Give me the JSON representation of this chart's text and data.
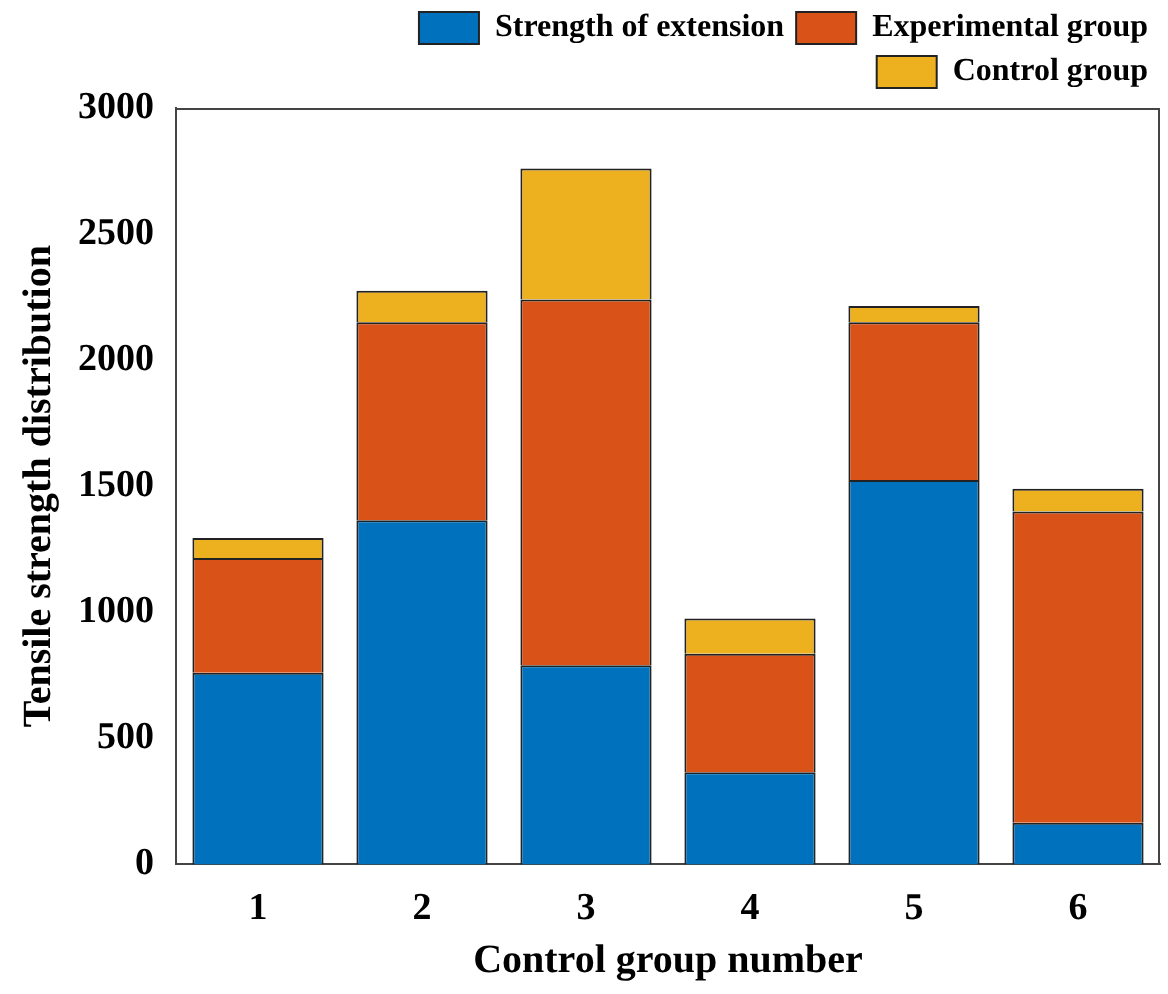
{
  "chart_data": {
    "type": "bar",
    "stacked": true,
    "xlabel": "Control group number",
    "ylabel": "Tensile strength distribution",
    "categories": [
      "1",
      "2",
      "3",
      "4",
      "5",
      "6"
    ],
    "series": [
      {
        "name": "Strength of extension",
        "color": "#0072bd",
        "values": [
          760,
          1365,
          790,
          365,
          1525,
          165
        ]
      },
      {
        "name": "Experimental group",
        "color": "#d95319",
        "values": [
          455,
          785,
          1450,
          470,
          625,
          1235
        ]
      },
      {
        "name": "Control group",
        "color": "#edb120",
        "values": [
          80,
          125,
          520,
          140,
          65,
          90
        ]
      }
    ],
    "ylim": [
      0,
      3000
    ],
    "yticks": [
      0,
      500,
      1000,
      1500,
      2000,
      2500,
      3000
    ],
    "grid": false,
    "legend": "top right"
  }
}
